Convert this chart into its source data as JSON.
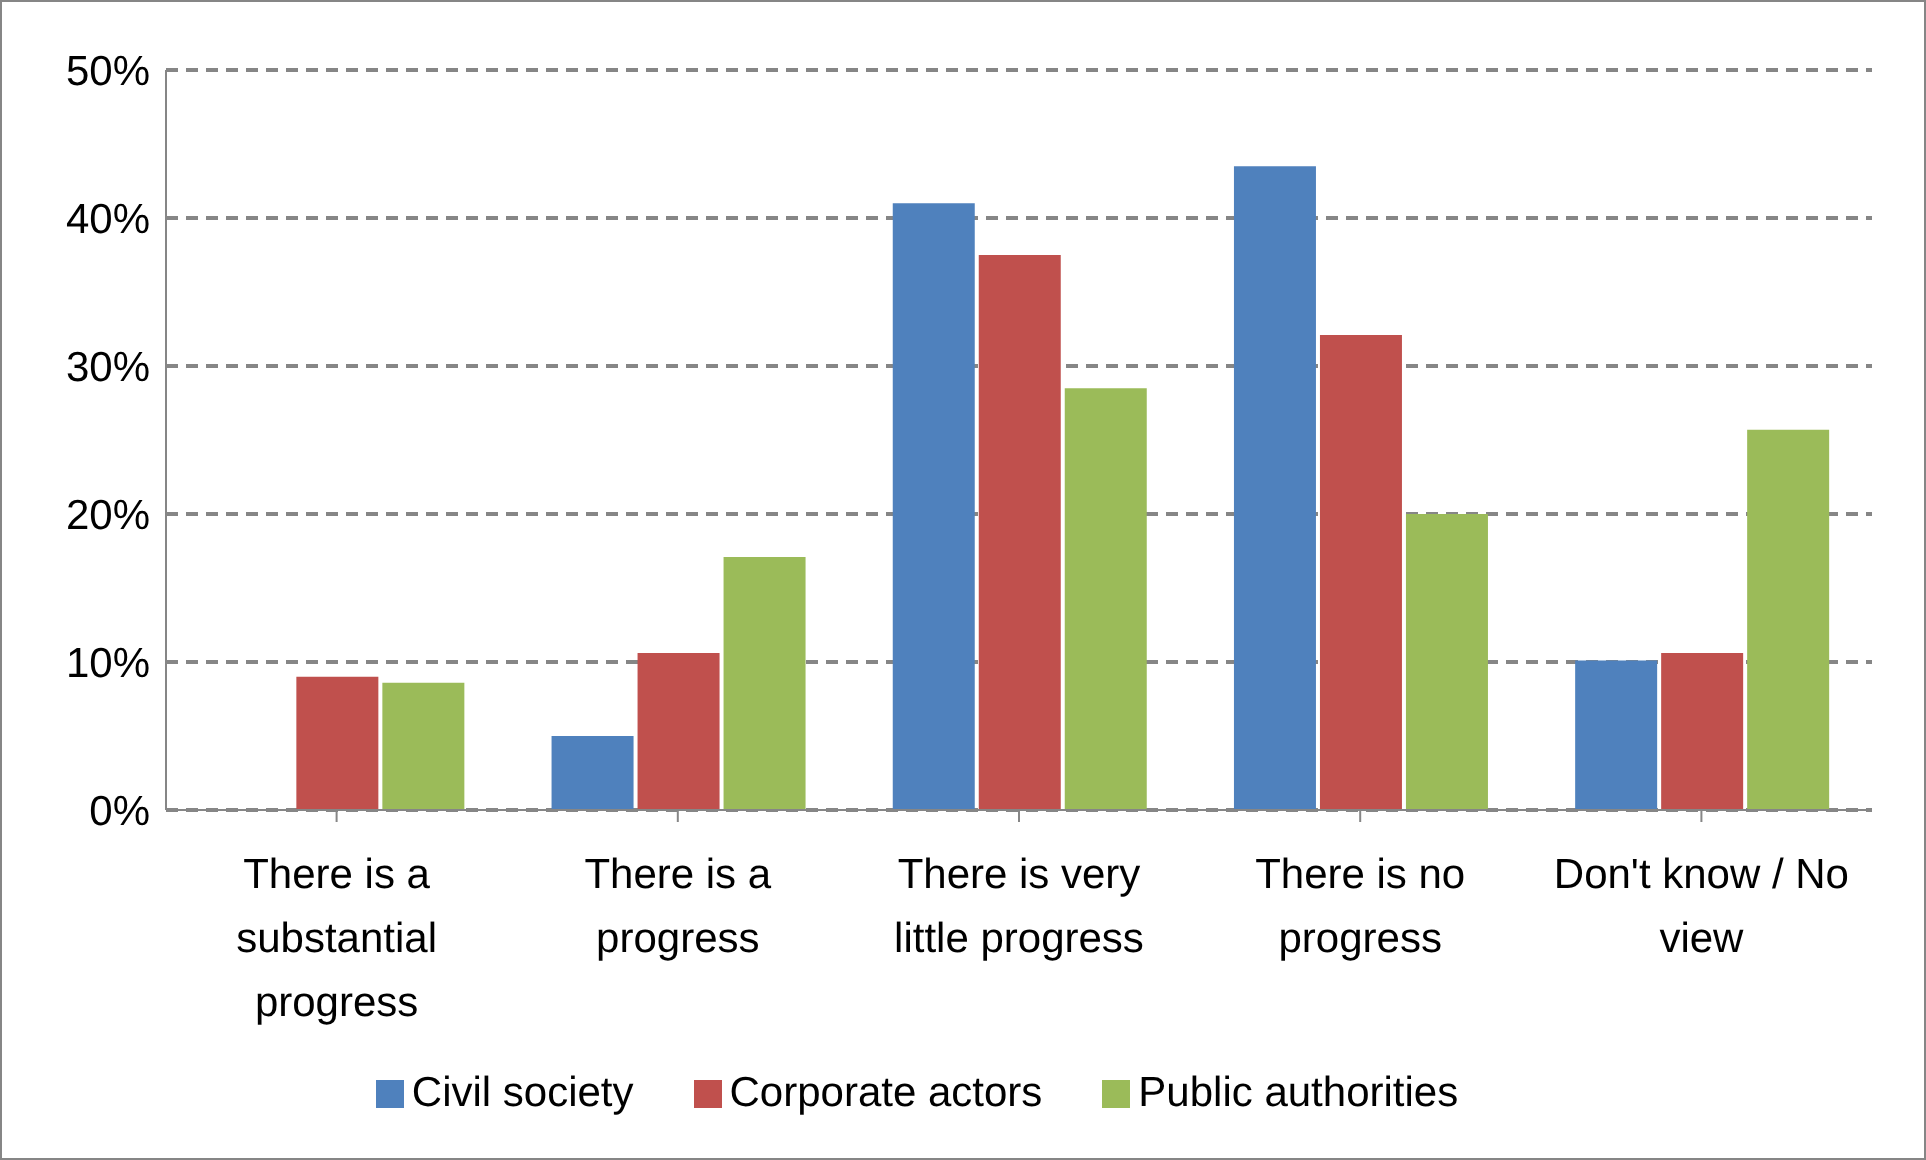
{
  "chart_data": {
    "type": "bar",
    "categories": [
      "There is a substantial progress",
      "There is a progress",
      "There is very little progress",
      "There is no progress",
      "Don't know / No view"
    ],
    "series": [
      {
        "name": "Civil society",
        "color": "#4f81bd",
        "values": [
          0,
          5,
          41,
          43.5,
          10.1
        ]
      },
      {
        "name": "Corporate actors",
        "color": "#c0504d",
        "values": [
          9,
          10.6,
          37.5,
          32.1,
          10.6
        ]
      },
      {
        "name": "Public authorities",
        "color": "#9bbb59",
        "values": [
          8.6,
          17.1,
          28.5,
          20,
          25.7
        ]
      }
    ],
    "ylim": [
      0,
      50
    ],
    "yticks": [
      {
        "value": 0,
        "label": "0%"
      },
      {
        "value": 10,
        "label": "10%"
      },
      {
        "value": 20,
        "label": "20%"
      },
      {
        "value": 30,
        "label": "30%"
      },
      {
        "value": 40,
        "label": "40%"
      },
      {
        "value": 50,
        "label": "50%"
      }
    ],
    "grid": "y",
    "legend": "bottom"
  }
}
